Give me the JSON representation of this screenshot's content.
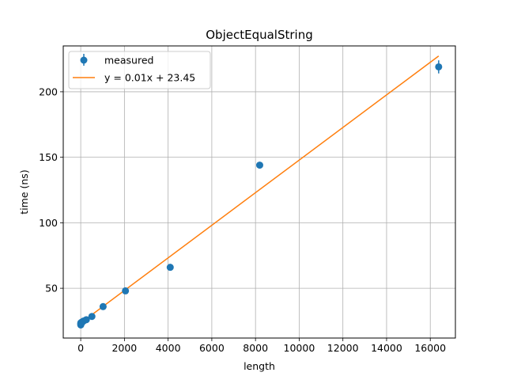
{
  "chart_data": {
    "type": "scatter",
    "title": "ObjectEqualString",
    "xlabel": "length",
    "ylabel": "time (ns)",
    "xlim": [
      -800,
      17150
    ],
    "ylim": [
      12,
      235
    ],
    "xticks": [
      0,
      2000,
      4000,
      6000,
      8000,
      10000,
      12000,
      14000,
      16000
    ],
    "yticks": [
      50,
      100,
      150,
      200
    ],
    "grid": true,
    "legend_position": "top-left",
    "series": [
      {
        "name": "measured",
        "kind": "errorbar",
        "color": "#1f77b4",
        "points": [
          {
            "x": 1,
            "y": 23.5,
            "err": 1.5
          },
          {
            "x": 2,
            "y": 22.0,
            "err": 1.0
          },
          {
            "x": 4,
            "y": 22.5,
            "err": 1.0
          },
          {
            "x": 8,
            "y": 23.0,
            "err": 1.0
          },
          {
            "x": 16,
            "y": 23.5,
            "err": 1.0
          },
          {
            "x": 32,
            "y": 24.0,
            "err": 1.0
          },
          {
            "x": 64,
            "y": 24.0,
            "err": 1.0
          },
          {
            "x": 128,
            "y": 25.0,
            "err": 1.0
          },
          {
            "x": 256,
            "y": 26.0,
            "err": 1.0
          },
          {
            "x": 512,
            "y": 28.5,
            "err": 1.0
          },
          {
            "x": 1024,
            "y": 36.0,
            "err": 1.0
          },
          {
            "x": 2048,
            "y": 48.0,
            "err": 1.0
          },
          {
            "x": 4096,
            "y": 66.0,
            "err": 1.0
          },
          {
            "x": 8192,
            "y": 144.0,
            "err": 2.5
          },
          {
            "x": 16384,
            "y": 219.0,
            "err": 5.0
          }
        ]
      },
      {
        "name": "y = 0.01x + 23.45",
        "kind": "line",
        "color": "#ff7f0e",
        "x": [
          1,
          16384
        ],
        "y": [
          23.46,
          227.3
        ]
      }
    ]
  }
}
